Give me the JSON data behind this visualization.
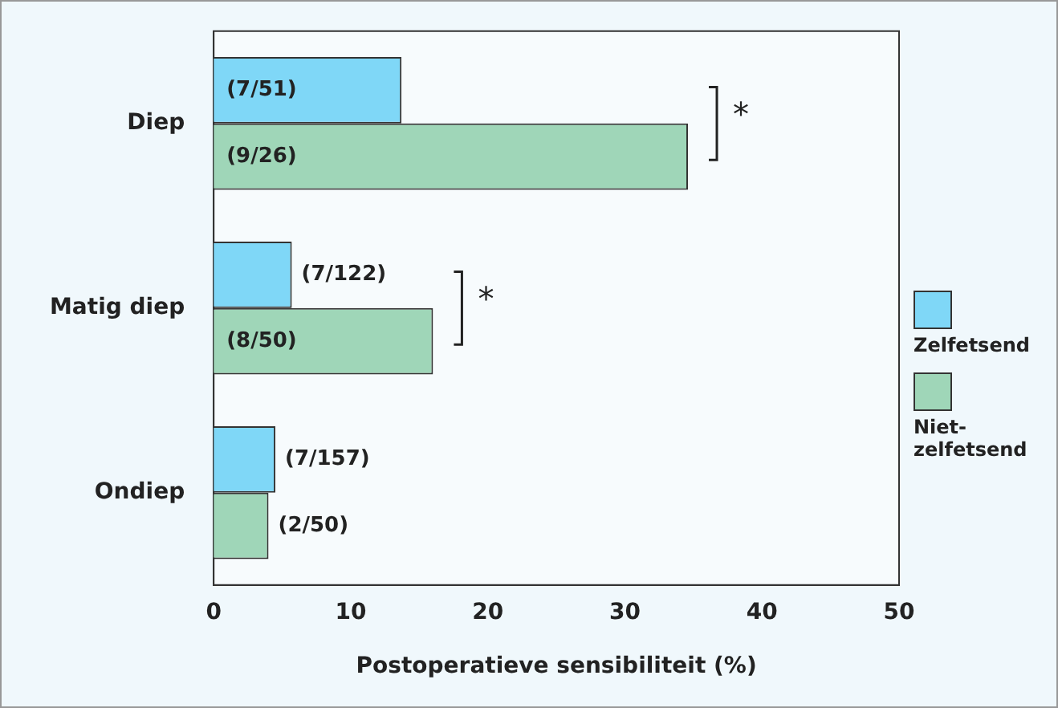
{
  "chart_data": {
    "type": "bar",
    "orientation": "horizontal",
    "xlabel": "Postoperatieve sensibiliteit (%)",
    "categories": [
      "Diep",
      "Matig diep",
      "Ondiep"
    ],
    "series": [
      {
        "name": "Zelfetsend",
        "color": "#7fd7f7",
        "values": [
          13.7,
          5.7,
          4.5
        ],
        "value_labels": [
          "(7/51)",
          "(7/122)",
          "(7/157)"
        ]
      },
      {
        "name": "Niet-\nzelfetsend",
        "color": "#9fd6b8",
        "values": [
          34.6,
          16.0,
          4.0
        ],
        "value_labels": [
          "(9/26)",
          "(8/50)",
          "(2/50)"
        ]
      }
    ],
    "xlim": [
      0,
      50
    ],
    "xticks": [
      0,
      10,
      20,
      30,
      40,
      50
    ],
    "grid": false,
    "legend": "right",
    "annotations": [
      "*",
      "*"
    ]
  }
}
